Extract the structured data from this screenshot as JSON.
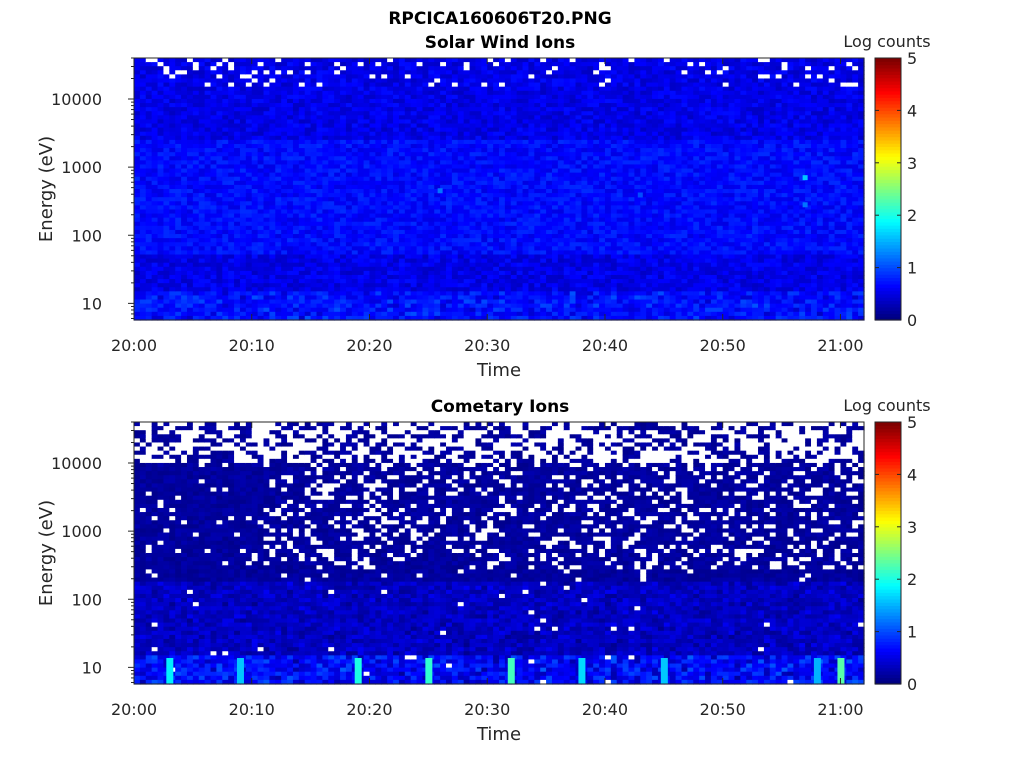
{
  "figure": {
    "title": "RPCICA160606T20.PNG"
  },
  "colorscale": {
    "name": "jet",
    "stops": [
      "#00008f",
      "#0000ff",
      "#00ffff",
      "#ffff00",
      "#ff0000",
      "#800000"
    ]
  },
  "chart_data": [
    {
      "type": "heatmap",
      "title": "Solar Wind Ions",
      "xlabel": "Time",
      "ylabel": "Energy (eV)",
      "x_ticks": [
        "20:00",
        "20:10",
        "20:20",
        "20:30",
        "20:40",
        "20:50",
        "21:00"
      ],
      "x_range": [
        "20:00",
        "21:02"
      ],
      "y_scale": "log",
      "y_ticks": [
        10,
        100,
        1000,
        10000
      ],
      "y_tick_labels": [
        "10",
        "100",
        "1000",
        "10000"
      ],
      "y_range": [
        5.7,
        40000
      ],
      "colorbar": {
        "label": "Log counts",
        "range": [
          0,
          5
        ],
        "ticks": [
          "0",
          "1",
          "2",
          "3",
          "4",
          "5"
        ]
      },
      "background_level": 0.6,
      "empty_bins": "sparse, top energies",
      "spots": [
        {
          "time": "20:26",
          "energy": 450,
          "level": 1.2
        },
        {
          "time": "20:43",
          "energy": 390,
          "level": 1.0
        },
        {
          "time": "20:57",
          "energy": 700,
          "level": 1.6
        },
        {
          "time": "20:57",
          "energy": 280,
          "level": 1.2
        }
      ]
    },
    {
      "type": "heatmap",
      "title": "Cometary Ions",
      "xlabel": "Time",
      "ylabel": "Energy (eV)",
      "x_ticks": [
        "20:00",
        "20:10",
        "20:20",
        "20:30",
        "20:40",
        "20:50",
        "21:00"
      ],
      "x_range": [
        "20:00",
        "21:02"
      ],
      "y_scale": "log",
      "y_ticks": [
        10,
        100,
        1000,
        10000
      ],
      "y_tick_labels": [
        "10",
        "100",
        "1000",
        "10000"
      ],
      "y_range": [
        5.7,
        40000
      ],
      "colorbar": {
        "label": "Log counts",
        "range": [
          0,
          5
        ],
        "ticks": [
          "0",
          "1",
          "2",
          "3",
          "4",
          "5"
        ]
      },
      "background_level": 0.15,
      "empty_bins": "dense above ~300 eV",
      "low_energy_bursts": [
        {
          "time": "20:03",
          "level": 1.8
        },
        {
          "time": "20:09",
          "level": 1.6
        },
        {
          "time": "20:19",
          "level": 2.0
        },
        {
          "time": "20:25",
          "level": 2.1
        },
        {
          "time": "20:32",
          "level": 2.2
        },
        {
          "time": "20:38",
          "level": 1.7
        },
        {
          "time": "20:45",
          "level": 1.6
        },
        {
          "time": "20:58",
          "level": 1.5
        },
        {
          "time": "21:00",
          "level": 2.3
        }
      ]
    }
  ]
}
